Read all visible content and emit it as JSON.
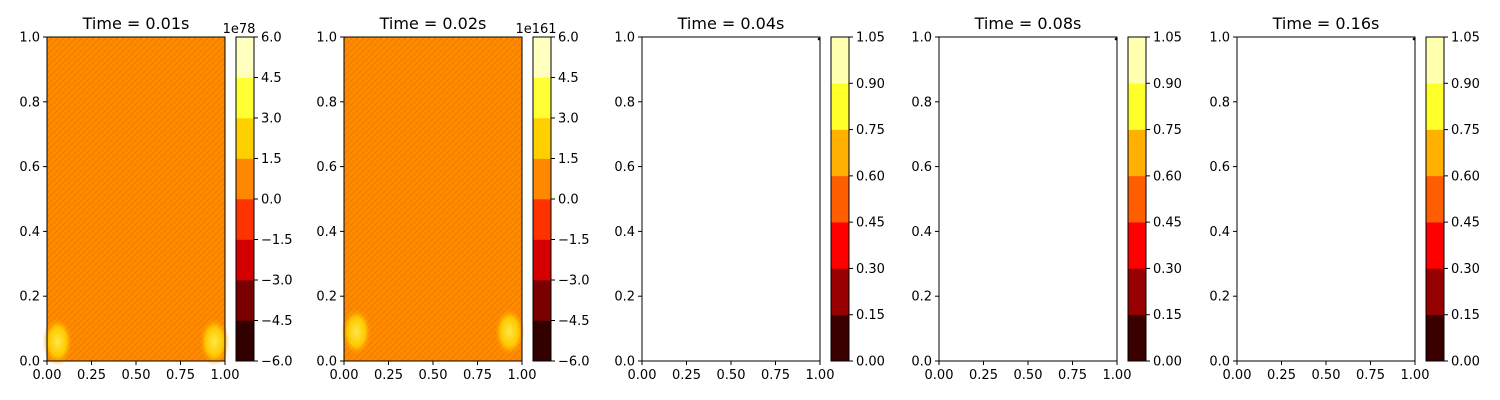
{
  "chart_data": [
    {
      "type": "heatmap",
      "title": "Time = 0.01s",
      "xlim": [
        0,
        1
      ],
      "ylim": [
        0,
        1
      ],
      "xticks": [
        "0.00",
        "0.25",
        "0.50",
        "0.75",
        "1.00"
      ],
      "yticks": [
        "0.0",
        "0.2",
        "0.4",
        "0.6",
        "0.8",
        "1.0"
      ],
      "fill": "field",
      "hotspots": [
        {
          "x": 0.06,
          "y": 0.06
        },
        {
          "x": 0.94,
          "y": 0.06
        }
      ],
      "colorbar": {
        "multiplier": "1e78",
        "range": [
          -6.0,
          6.0
        ],
        "ticks": [
          "−6.0",
          "−4.5",
          "−3.0",
          "−1.5",
          "0.0",
          "1.5",
          "3.0",
          "4.5",
          "6.0"
        ],
        "colors": [
          "#330000",
          "#7a0000",
          "#d40000",
          "#ff3300",
          "#ff8800",
          "#ffd000",
          "#ffff33",
          "#ffffc0"
        ]
      }
    },
    {
      "type": "heatmap",
      "title": "Time = 0.02s",
      "xlim": [
        0,
        1
      ],
      "ylim": [
        0,
        1
      ],
      "xticks": [
        "0.00",
        "0.25",
        "0.50",
        "0.75",
        "1.00"
      ],
      "yticks": [
        "0.0",
        "0.2",
        "0.4",
        "0.6",
        "0.8",
        "1.0"
      ],
      "fill": "field",
      "hotspots": [
        {
          "x": 0.07,
          "y": 0.09
        },
        {
          "x": 0.93,
          "y": 0.09
        }
      ],
      "colorbar": {
        "multiplier": "1e161",
        "range": [
          -6.0,
          6.0
        ],
        "ticks": [
          "−6.0",
          "−4.5",
          "−3.0",
          "−1.5",
          "0.0",
          "1.5",
          "3.0",
          "4.5",
          "6.0"
        ],
        "colors": [
          "#330000",
          "#7a0000",
          "#d40000",
          "#ff3300",
          "#ff8800",
          "#ffd000",
          "#ffff33",
          "#ffffc0"
        ]
      }
    },
    {
      "type": "heatmap",
      "title": "Time = 0.04s",
      "xlim": [
        0,
        1
      ],
      "ylim": [
        0,
        1
      ],
      "xticks": [
        "0.00",
        "0.25",
        "0.50",
        "0.75",
        "1.00"
      ],
      "yticks": [
        "0.0",
        "0.2",
        "0.4",
        "0.6",
        "0.8",
        "1.0"
      ],
      "fill": "empty",
      "hotspots": [],
      "colorbar": {
        "multiplier": "",
        "range": [
          0.0,
          1.05
        ],
        "ticks": [
          "0.00",
          "0.15",
          "0.30",
          "0.45",
          "0.60",
          "0.75",
          "0.90",
          "1.05"
        ],
        "colors": [
          "#3a0000",
          "#960000",
          "#ff0000",
          "#ff5e00",
          "#ffb000",
          "#ffff2a",
          "#ffffb0"
        ]
      }
    },
    {
      "type": "heatmap",
      "title": "Time = 0.08s",
      "xlim": [
        0,
        1
      ],
      "ylim": [
        0,
        1
      ],
      "xticks": [
        "0.00",
        "0.25",
        "0.50",
        "0.75",
        "1.00"
      ],
      "yticks": [
        "0.0",
        "0.2",
        "0.4",
        "0.6",
        "0.8",
        "1.0"
      ],
      "fill": "empty",
      "hotspots": [],
      "colorbar": {
        "multiplier": "",
        "range": [
          0.0,
          1.05
        ],
        "ticks": [
          "0.00",
          "0.15",
          "0.30",
          "0.45",
          "0.60",
          "0.75",
          "0.90",
          "1.05"
        ],
        "colors": [
          "#3a0000",
          "#960000",
          "#ff0000",
          "#ff5e00",
          "#ffb000",
          "#ffff2a",
          "#ffffb0"
        ]
      }
    },
    {
      "type": "heatmap",
      "title": "Time = 0.16s",
      "xlim": [
        0,
        1
      ],
      "ylim": [
        0,
        1
      ],
      "xticks": [
        "0.00",
        "0.25",
        "0.50",
        "0.75",
        "1.00"
      ],
      "yticks": [
        "0.0",
        "0.2",
        "0.4",
        "0.6",
        "0.8",
        "1.0"
      ],
      "fill": "empty",
      "hotspots": [],
      "colorbar": {
        "multiplier": "",
        "range": [
          0.0,
          1.05
        ],
        "ticks": [
          "0.00",
          "0.15",
          "0.30",
          "0.45",
          "0.60",
          "0.75",
          "0.90",
          "1.05"
        ],
        "colors": [
          "#3a0000",
          "#960000",
          "#ff0000",
          "#ff5e00",
          "#ffb000",
          "#ffff2a",
          "#ffffb0"
        ]
      }
    }
  ],
  "colors": {
    "field_base": "#ff8c00",
    "field_texture": "#c84a00",
    "hotspot": "#ffd400",
    "axis": "#000000",
    "empty_fill": "#ffffff"
  }
}
